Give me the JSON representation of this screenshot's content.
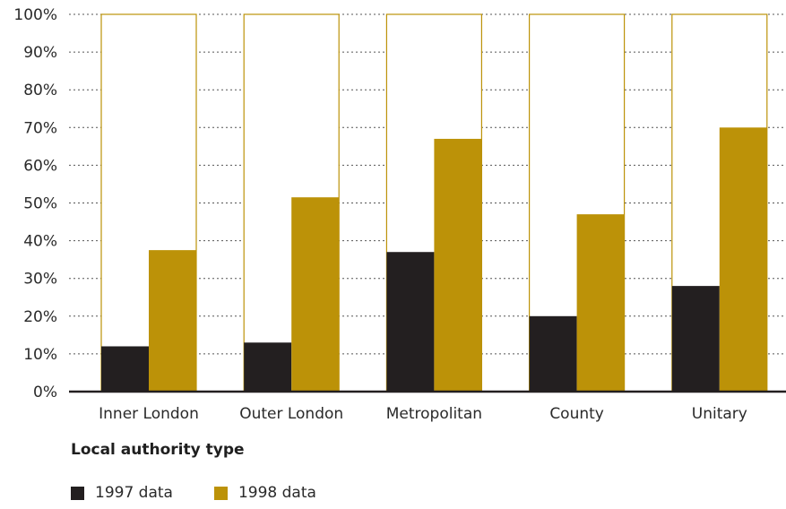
{
  "chart_data": {
    "type": "bar",
    "categories": [
      "Inner London",
      "Outer London",
      "Metropolitan",
      "County",
      "Unitary"
    ],
    "series": [
      {
        "name": "1997 data",
        "values": [
          12,
          13,
          37,
          20,
          28
        ],
        "color": "#231f20"
      },
      {
        "name": "1998 data",
        "values": [
          37.5,
          51.5,
          67,
          47,
          70
        ],
        "color": "#bc9208"
      }
    ],
    "outline_value": 100,
    "outline_color": "#bc9208",
    "xlabel": "Local authority type",
    "ylabel": "",
    "ylim": [
      0,
      100
    ],
    "yticks": [
      "0%",
      "10%",
      "20%",
      "30%",
      "40%",
      "50%",
      "60%",
      "70%",
      "80%",
      "90%",
      "100%"
    ],
    "grid": true,
    "legend_position": "bottom-left"
  }
}
